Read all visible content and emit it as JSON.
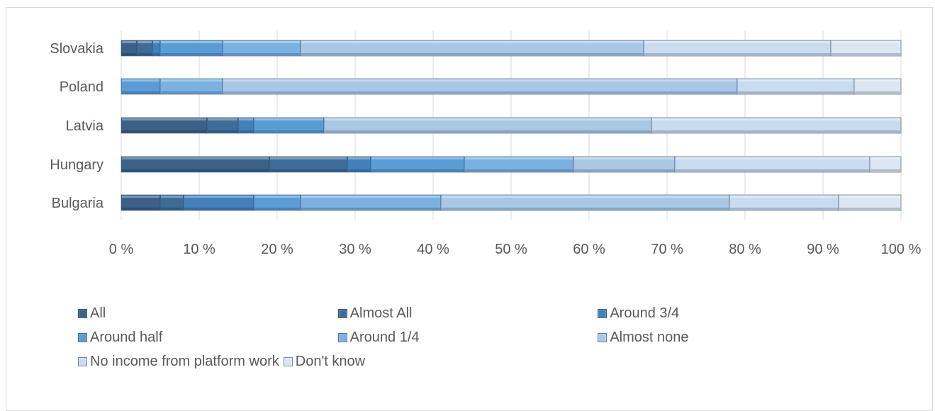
{
  "chart_data": {
    "type": "bar",
    "orientation": "horizontal",
    "stacked": "percent",
    "categories": [
      "Slovakia",
      "Poland",
      "Latvia",
      "Hungary",
      "Bulgaria"
    ],
    "series": [
      {
        "name": "All",
        "color": "#3a6187",
        "values": [
          2,
          0,
          11,
          19,
          5
        ]
      },
      {
        "name": "Almost All",
        "color": "#3e6c98",
        "values": [
          2,
          0,
          4,
          10,
          3
        ]
      },
      {
        "name": "Around 3/4",
        "color": "#4180b9",
        "values": [
          1,
          0,
          2,
          3,
          9
        ]
      },
      {
        "name": "Around half",
        "color": "#5a9dd6",
        "values": [
          8,
          5,
          9,
          12,
          6
        ]
      },
      {
        "name": "Around 1/4",
        "color": "#7ab1e0",
        "values": [
          10,
          8,
          0,
          14,
          18
        ]
      },
      {
        "name": "Almost none",
        "color": "#a9c8e6",
        "values": [
          44,
          66,
          42,
          13,
          37
        ]
      },
      {
        "name": "No income from platform work",
        "color": "#c9dcef",
        "values": [
          24,
          15,
          32,
          25,
          14
        ]
      },
      {
        "name": "Don't know",
        "color": "#dbe6f2",
        "values": [
          9,
          6,
          0,
          4,
          8
        ]
      }
    ],
    "xlim": [
      0,
      100
    ],
    "x_ticks": [
      "0 %",
      "10 %",
      "20 %",
      "30 %",
      "40 %",
      "50 %",
      "60 %",
      "70 %",
      "80 %",
      "90 %",
      "100 %"
    ],
    "grid": "vertical",
    "legend_position": "bottom"
  }
}
